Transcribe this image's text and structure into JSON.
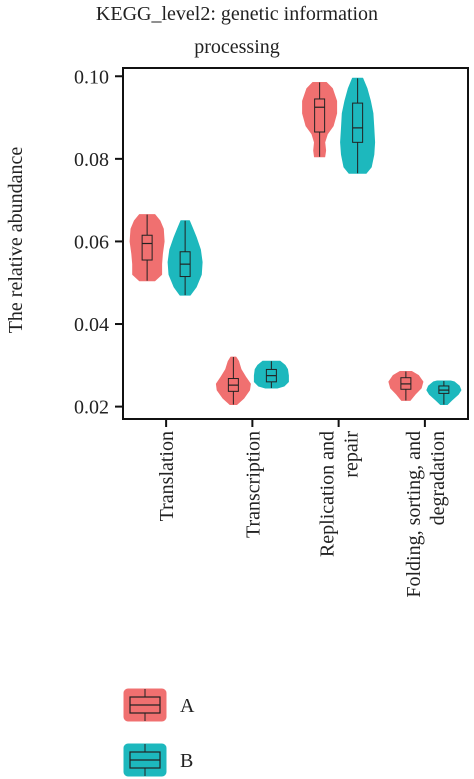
{
  "chart_data": {
    "type": "violin",
    "title_lines": [
      "KEGG_level2: genetic information",
      "processing"
    ],
    "ylabel": "The relative abundance",
    "ylim": [
      0.017,
      0.102
    ],
    "yticks": [
      "0.10",
      "0.08",
      "0.06",
      "0.04",
      "0.02"
    ],
    "ytick_values": [
      0.1,
      0.08,
      0.06,
      0.04,
      0.02
    ],
    "categories": [
      {
        "lines": [
          "Translation"
        ]
      },
      {
        "lines": [
          "Transcription"
        ]
      },
      {
        "lines": [
          "Replication and",
          "repair"
        ]
      },
      {
        "lines": [
          "Folding, sorting, and",
          "degradation"
        ]
      }
    ],
    "series": [
      {
        "name": "A",
        "color": "#f07070",
        "groups": [
          {
            "min": 0.0505,
            "q1": 0.0555,
            "median": 0.0595,
            "q3": 0.0615,
            "max": 0.0665,
            "profile": [
              [
                0.0505,
                0.45
              ],
              [
                0.052,
                0.85
              ],
              [
                0.0545,
                0.85
              ],
              [
                0.057,
                0.9
              ],
              [
                0.06,
                1.0
              ],
              [
                0.063,
                0.95
              ],
              [
                0.065,
                0.75
              ],
              [
                0.0665,
                0.45
              ]
            ]
          },
          {
            "min": 0.0205,
            "q1": 0.0237,
            "median": 0.0252,
            "q3": 0.0268,
            "max": 0.032,
            "profile": [
              [
                0.0205,
                0.2
              ],
              [
                0.022,
                0.6
              ],
              [
                0.024,
                0.95
              ],
              [
                0.0255,
                1.0
              ],
              [
                0.027,
                0.75
              ],
              [
                0.029,
                0.45
              ],
              [
                0.031,
                0.3
              ],
              [
                0.032,
                0.15
              ]
            ]
          },
          {
            "min": 0.0805,
            "q1": 0.0865,
            "median": 0.0925,
            "q3": 0.0945,
            "max": 0.0985,
            "profile": [
              [
                0.0805,
                0.3
              ],
              [
                0.082,
                0.35
              ],
              [
                0.084,
                0.3
              ],
              [
                0.086,
                0.45
              ],
              [
                0.088,
                0.8
              ],
              [
                0.091,
                1.0
              ],
              [
                0.094,
                1.0
              ],
              [
                0.097,
                0.75
              ],
              [
                0.0985,
                0.4
              ]
            ]
          },
          {
            "min": 0.0215,
            "q1": 0.0242,
            "median": 0.0255,
            "q3": 0.027,
            "max": 0.0285,
            "profile": [
              [
                0.0215,
                0.25
              ],
              [
                0.023,
                0.55
              ],
              [
                0.0245,
                0.9
              ],
              [
                0.026,
                1.0
              ],
              [
                0.0275,
                0.75
              ],
              [
                0.0285,
                0.35
              ]
            ]
          }
        ]
      },
      {
        "name": "B",
        "color": "#1db8bd",
        "groups": [
          {
            "min": 0.047,
            "q1": 0.0515,
            "median": 0.0545,
            "q3": 0.0575,
            "max": 0.065,
            "profile": [
              [
                0.047,
                0.3
              ],
              [
                0.049,
                0.65
              ],
              [
                0.052,
                0.95
              ],
              [
                0.055,
                1.0
              ],
              [
                0.058,
                0.9
              ],
              [
                0.061,
                0.65
              ],
              [
                0.063,
                0.45
              ],
              [
                0.065,
                0.25
              ]
            ]
          },
          {
            "min": 0.0245,
            "q1": 0.026,
            "median": 0.0275,
            "q3": 0.029,
            "max": 0.031,
            "profile": [
              [
                0.0245,
                0.35
              ],
              [
                0.025,
                0.75
              ],
              [
                0.026,
                1.0
              ],
              [
                0.0275,
                1.0
              ],
              [
                0.029,
                0.95
              ],
              [
                0.03,
                0.8
              ],
              [
                0.031,
                0.5
              ]
            ]
          },
          {
            "min": 0.0765,
            "q1": 0.084,
            "median": 0.0875,
            "q3": 0.0935,
            "max": 0.0995,
            "profile": [
              [
                0.0765,
                0.5
              ],
              [
                0.078,
                0.8
              ],
              [
                0.081,
                0.95
              ],
              [
                0.084,
                1.0
              ],
              [
                0.0875,
                0.95
              ],
              [
                0.091,
                0.9
              ],
              [
                0.094,
                0.75
              ],
              [
                0.097,
                0.55
              ],
              [
                0.0995,
                0.3
              ]
            ]
          },
          {
            "min": 0.0205,
            "q1": 0.0232,
            "median": 0.024,
            "q3": 0.025,
            "max": 0.0262,
            "profile": [
              [
                0.0205,
                0.2
              ],
              [
                0.0215,
                0.45
              ],
              [
                0.023,
                0.85
              ],
              [
                0.024,
                1.0
              ],
              [
                0.025,
                0.9
              ],
              [
                0.026,
                0.6
              ],
              [
                0.0262,
                0.4
              ]
            ]
          }
        ]
      }
    ],
    "legend": {
      "position": "bottom-left",
      "entries": [
        "A",
        "B"
      ]
    }
  }
}
